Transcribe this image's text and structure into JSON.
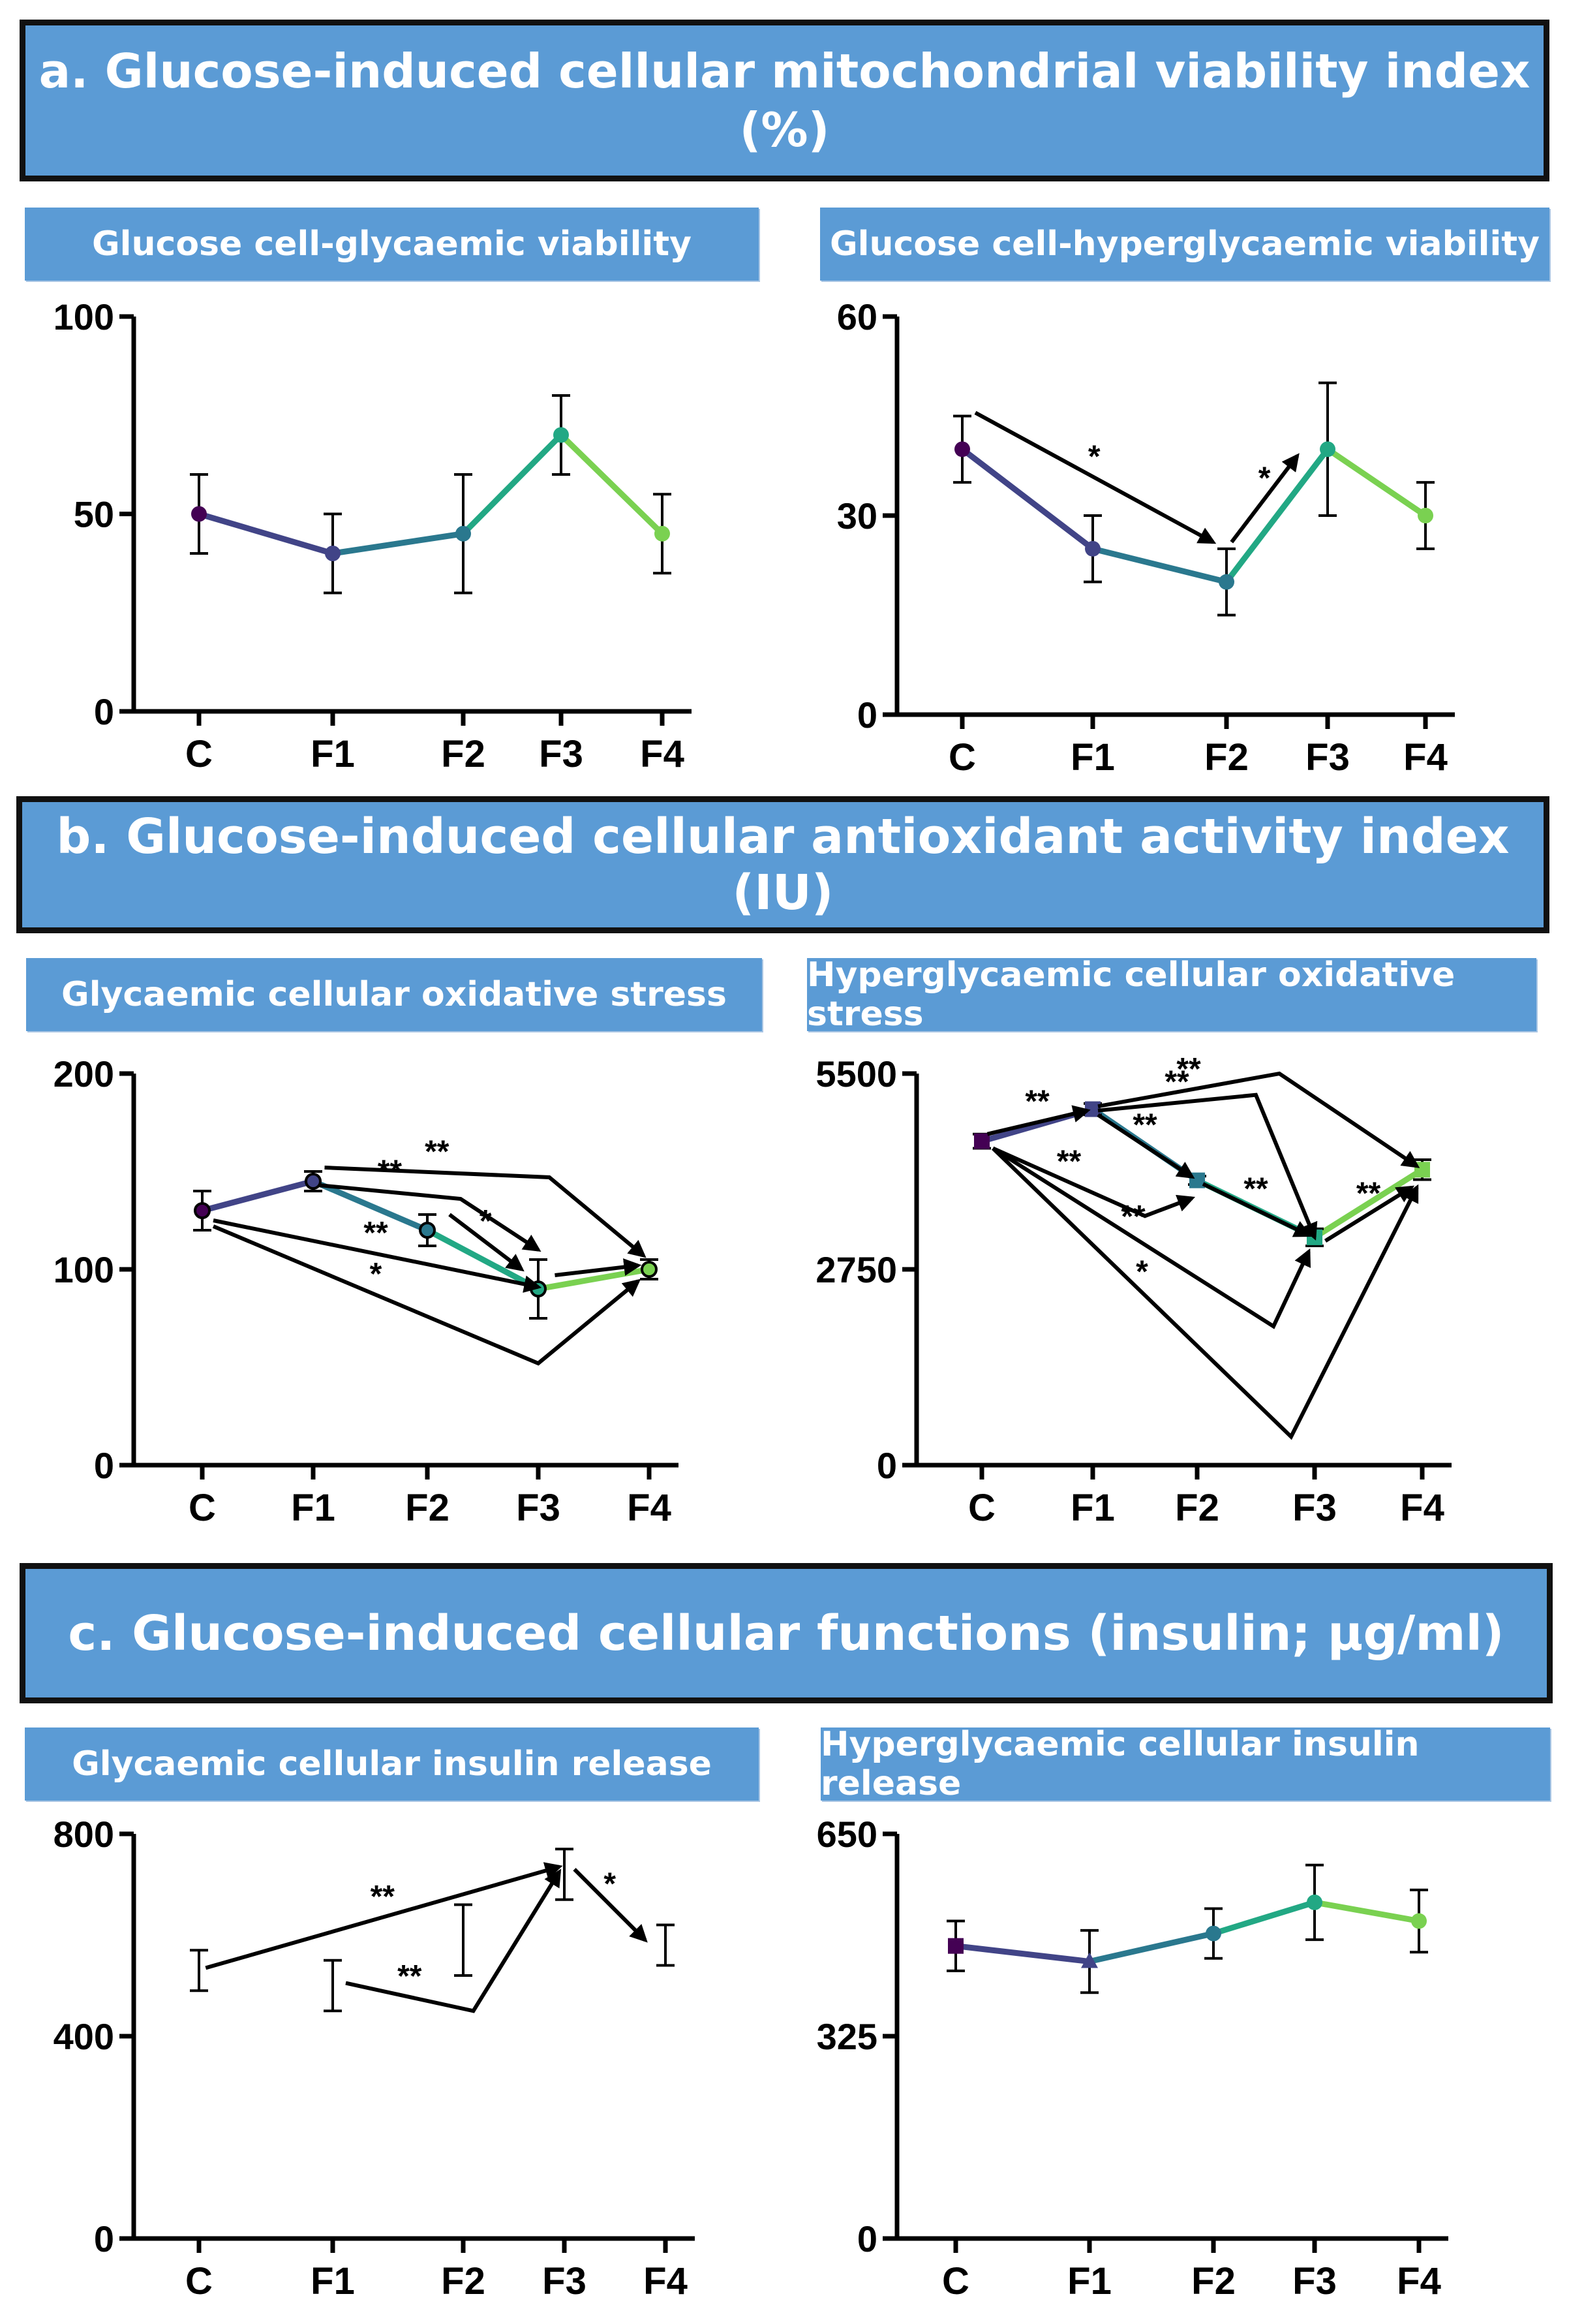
{
  "sections": [
    {
      "title_line1": "a. Glucose-induced cellular mitochondrial viability index",
      "title_line2": "(%)"
    },
    {
      "title_line1": "b. Glucose-induced cellular antioxidant activity index (IU)",
      "title_line2": ""
    },
    {
      "title_line1": "c. Glucose-induced cellular functions (insulin; µg/ml)",
      "title_line2": ""
    }
  ],
  "panel_titles": [
    "Glucose cell-glycaemic viability",
    "Glucose cell-hyperglycaemic viability",
    "Glycaemic cellular oxidative stress",
    "Hyperglycaemic cellular oxidative stress",
    "Glycaemic cellular insulin release",
    "Hyperglycaemic cellular insulin release"
  ],
  "colors": {
    "C": "#440154",
    "F1": "#414487",
    "F2": "#2a788e",
    "F3": "#22a884",
    "F4": "#7ad151",
    "banner": "#5b9bd5",
    "axis": "#000000"
  },
  "chart_data": [
    {
      "type": "line",
      "title": "Glucose cell-glycaemic viability",
      "categories": [
        "C",
        "F1",
        "F2",
        "F3",
        "F4"
      ],
      "values": [
        50,
        40,
        45,
        70,
        45
      ],
      "errors": [
        10,
        10,
        15,
        10,
        10
      ],
      "ylim": [
        0,
        100
      ],
      "yticks": [
        0,
        50,
        100
      ],
      "show_line": true,
      "markers": "circle",
      "annotations": []
    },
    {
      "type": "line",
      "title": "Glucose cell-hyperglycaemic viability",
      "categories": [
        "C",
        "F1",
        "F2",
        "F3",
        "F4"
      ],
      "values": [
        40,
        25,
        20,
        40,
        30
      ],
      "errors": [
        5,
        5,
        5,
        10,
        5
      ],
      "ylim": [
        0,
        60
      ],
      "yticks": [
        0,
        30,
        60
      ],
      "show_line": true,
      "markers": "circle",
      "annotations": [
        {
          "from": [
            0.1,
            45.5
          ],
          "to": [
            1.9,
            26
          ],
          "label": "*"
        },
        {
          "from": [
            2.05,
            26
          ],
          "to": [
            2.7,
            39
          ],
          "label": "*"
        }
      ]
    },
    {
      "type": "line",
      "title": "Glycaemic cellular oxidative stress",
      "categories": [
        "C",
        "F1",
        "F2",
        "F3",
        "F4"
      ],
      "values": [
        130,
        145,
        120,
        90,
        100
      ],
      "errors": [
        10,
        5,
        8,
        15,
        5
      ],
      "ylim": [
        0,
        200
      ],
      "yticks": [
        0,
        100,
        200
      ],
      "show_line": true,
      "markers": "circle-open",
      "annotations": [
        {
          "path": [
            [
              1.1,
              152
            ],
            [
              3.1,
              147
            ],
            [
              3.95,
              107
            ]
          ],
          "label": "**"
        },
        {
          "path": [
            [
              1.05,
              143
            ],
            [
              2.3,
              136
            ],
            [
              3.0,
              110
            ]
          ],
          "label": "**"
        },
        {
          "path": [
            [
              2.2,
              128
            ],
            [
              2.85,
              100
            ]
          ],
          "label": "*"
        },
        {
          "path": [
            [
              0.1,
              125
            ],
            [
              3.0,
              91
            ]
          ],
          "label": "**"
        },
        {
          "path": [
            [
              3.15,
              97
            ],
            [
              3.9,
              102
            ]
          ],
          "label": ""
        },
        {
          "path": [
            [
              0.1,
              122
            ],
            [
              3.0,
              52
            ],
            [
              3.9,
              94
            ]
          ],
          "label": "*"
        }
      ]
    },
    {
      "type": "line",
      "title": "Hyperglycaemic cellular oxidative stress",
      "categories": [
        "C",
        "F1",
        "F2",
        "F3",
        "F4"
      ],
      "values": [
        4550,
        5000,
        4000,
        3200,
        4150
      ],
      "errors": [
        100,
        80,
        60,
        120,
        140
      ],
      "ylim": [
        0,
        5500
      ],
      "yticks": [
        0,
        2750,
        5500
      ],
      "show_line": true,
      "markers": "square",
      "annotations": [
        {
          "path": [
            [
              0.05,
              4650
            ],
            [
              0.95,
              4980
            ]
          ],
          "label": "**"
        },
        {
          "path": [
            [
              1.05,
              4920
            ],
            [
              1.95,
              4050
            ]
          ],
          "label": "**"
        },
        {
          "path": [
            [
              1.05,
              4980
            ],
            [
              2.5,
              5200
            ],
            [
              3.0,
              3200
            ]
          ],
          "label": "**"
        },
        {
          "path": [
            [
              1.05,
              5040
            ],
            [
              2.7,
              5500
            ],
            [
              3.95,
              4200
            ]
          ],
          "label": "**"
        },
        {
          "path": [
            [
              2.05,
              3950
            ],
            [
              2.95,
              3230
            ]
          ],
          "label": "**"
        },
        {
          "path": [
            [
              3.1,
              3150
            ],
            [
              3.9,
              3900
            ]
          ],
          "label": "**"
        },
        {
          "path": [
            [
              0.1,
              4450
            ],
            [
              1.5,
              3500
            ],
            [
              1.95,
              3750
            ]
          ],
          "label": "**"
        },
        {
          "path": [
            [
              0.1,
              4450
            ],
            [
              2.65,
              1950
            ],
            [
              2.95,
              3000
            ]
          ],
          "label": "**"
        },
        {
          "path": [
            [
              0.1,
              4450
            ],
            [
              2.8,
              400
            ],
            [
              3.95,
              3900
            ]
          ],
          "label": "*"
        }
      ]
    },
    {
      "type": "line",
      "title": "Glycaemic cellular insulin release",
      "categories": [
        "C",
        "F1",
        "F2",
        "F3",
        "F4"
      ],
      "values": [
        530,
        500,
        590,
        720,
        580
      ],
      "errors": [
        40,
        50,
        70,
        50,
        40
      ],
      "ylim": [
        0,
        800
      ],
      "yticks": [
        0,
        400,
        800
      ],
      "show_line": false,
      "markers": "none",
      "annotations": [
        {
          "path": [
            [
              0.05,
              535
            ],
            [
              2.95,
              735
            ]
          ],
          "label": "**"
        },
        {
          "path": [
            [
              1.1,
              505
            ],
            [
              2.1,
              450
            ],
            [
              2.95,
              725
            ]
          ],
          "label": "**"
        },
        {
          "path": [
            [
              3.1,
              730
            ],
            [
              3.8,
              590
            ]
          ],
          "label": "*"
        }
      ]
    },
    {
      "type": "line",
      "title": "Hyperglycaemic cellular insulin release",
      "categories": [
        "C",
        "F1",
        "F2",
        "F3",
        "F4"
      ],
      "values": [
        470,
        445,
        490,
        540,
        510
      ],
      "errors": [
        40,
        50,
        40,
        60,
        50
      ],
      "ylim": [
        0,
        650
      ],
      "yticks": [
        0,
        325,
        650
      ],
      "show_line": true,
      "markers": "mixed",
      "annotations": []
    }
  ]
}
